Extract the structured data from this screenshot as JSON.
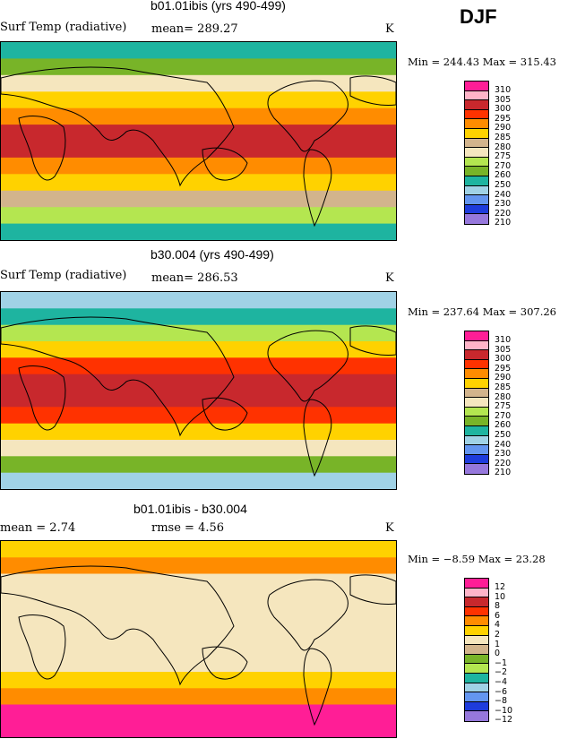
{
  "season": "DJF",
  "panels": [
    {
      "title": "b01.01ibis (yrs 490-499)",
      "variable": "Surf Temp (radiative)",
      "stat1": "mean= 289.27",
      "stat2": "",
      "units": "K",
      "minmax": "Min = 244.43 Max = 315.43",
      "levels": [
        "310",
        "305",
        "300",
        "295",
        "290",
        "285",
        "280",
        "275",
        "270",
        "260",
        "250",
        "240",
        "230",
        "220",
        "210"
      ],
      "colors": [
        "#ff1e96",
        "#ffb4c8",
        "#c8282d",
        "#ff3200",
        "#ff8c00",
        "#ffd200",
        "#d2b48c",
        "#f5e6be",
        "#b4e650",
        "#78b428",
        "#1eb4a0",
        "#a0d2e6",
        "#6496f0",
        "#1e3cdc",
        "#9678dc"
      ]
    },
    {
      "title": "b30.004 (yrs 490-499)",
      "variable": "Surf Temp (radiative)",
      "stat1": "mean= 286.53",
      "stat2": "",
      "units": "K",
      "minmax": "Min = 237.64 Max = 307.26",
      "levels": [
        "310",
        "305",
        "300",
        "295",
        "290",
        "285",
        "280",
        "275",
        "270",
        "260",
        "250",
        "240",
        "230",
        "220",
        "210"
      ],
      "colors": [
        "#ff1e96",
        "#ffb4c8",
        "#c8282d",
        "#ff3200",
        "#ff8c00",
        "#ffd200",
        "#d2b48c",
        "#f5e6be",
        "#b4e650",
        "#78b428",
        "#1eb4a0",
        "#a0d2e6",
        "#6496f0",
        "#1e3cdc",
        "#9678dc"
      ]
    },
    {
      "title": "b01.01ibis - b30.004",
      "variable": "",
      "stat1": "mean =    2.74",
      "stat2": "rmse =    4.56",
      "units": "K",
      "minmax": "Min =  −8.59 Max =  23.28",
      "levels": [
        "12",
        "10",
        "8",
        "6",
        "4",
        "2",
        "1",
        "0",
        "−1",
        "−2",
        "−4",
        "−6",
        "−8",
        "−10",
        "−12"
      ],
      "colors": [
        "#ff1e96",
        "#ffb4c8",
        "#c8282d",
        "#ff3200",
        "#ff8c00",
        "#ffd200",
        "#f5e6be",
        "#d2b48c",
        "#78b428",
        "#b4e650",
        "#1eb4a0",
        "#a0d2e6",
        "#6496f0",
        "#1e3cdc",
        "#9678dc"
      ]
    }
  ],
  "palette": {
    "p0": [
      "#1eb4a0",
      "#78b428",
      "#f5e6be",
      "#ffd200",
      "#ff8c00",
      "#c8282d",
      "#c8282d",
      "#ff8c00",
      "#ffd200",
      "#d2b48c",
      "#b4e650",
      "#1eb4a0"
    ],
    "p1": [
      "#a0d2e6",
      "#1eb4a0",
      "#b4e650",
      "#ffd200",
      "#ff3200",
      "#c8282d",
      "#c8282d",
      "#ff3200",
      "#ffd200",
      "#f5e6be",
      "#78b428",
      "#a0d2e6"
    ],
    "p2": [
      "#ffd200",
      "#ff8c00",
      "#f5e6be",
      "#f5e6be",
      "#f5e6be",
      "#f5e6be",
      "#f5e6be",
      "#f5e6be",
      "#ffd200",
      "#ff8c00",
      "#ff1e96",
      "#ff1e96"
    ]
  }
}
